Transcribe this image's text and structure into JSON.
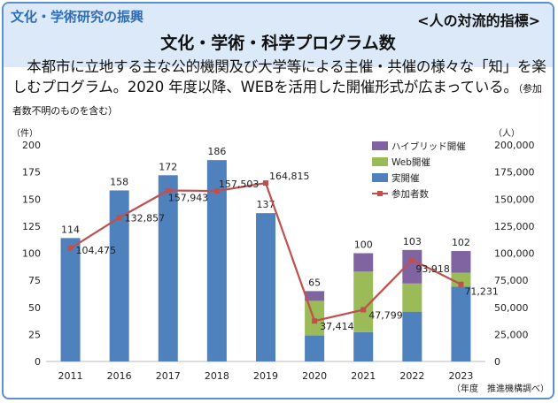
{
  "header": {
    "category": "文化・学術研究の振興",
    "indicator": "<人の対流的指標>",
    "title": "文化・学術・科学プログラム数"
  },
  "description": {
    "text": "　本都市に立地する主な公的機関及び大学等による主催・共催の様々な「知」を楽しむプログラム。2020 年度以降、WEBを活用した開催形式が広まっている。",
    "note": "（参加者数不明のものを含む）"
  },
  "colors": {
    "real": "#4f81bd",
    "web": "#9bbb59",
    "hybrid": "#8064a2",
    "line": "#c0504d",
    "frame": "#5a8fd0",
    "category": "#2f6db5"
  },
  "chart_data": {
    "type": "bar",
    "stacked": true,
    "categories": [
      "2011",
      "2016",
      "2017",
      "2018",
      "2019",
      "2020",
      "2021",
      "2022",
      "2023"
    ],
    "series": [
      {
        "name": "実開催",
        "values": [
          114,
          158,
          172,
          186,
          137,
          24,
          27,
          46,
          69
        ]
      },
      {
        "name": "Web開催",
        "values": [
          0,
          0,
          0,
          0,
          0,
          32,
          56,
          26,
          13
        ]
      },
      {
        "name": "ハイブリッド開催",
        "values": [
          0,
          0,
          0,
          0,
          0,
          9,
          17,
          31,
          20
        ]
      }
    ],
    "bar_totals": [
      "114",
      "158",
      "172",
      "186",
      "137",
      "65",
      "100",
      "103",
      "102"
    ],
    "line": {
      "name": "参加者数",
      "values": [
        104475,
        132857,
        157943,
        157503,
        164815,
        37414,
        47799,
        93918,
        71231
      ],
      "labels": [
        "104,475",
        "132,857",
        "157,943",
        "157,503",
        "164,815",
        "37,414",
        "47,799",
        "93,918",
        "71,231"
      ]
    },
    "ylim_left": [
      0,
      200
    ],
    "ylim_right": [
      0,
      200000
    ],
    "left_ticks": [
      "0",
      "25",
      "50",
      "75",
      "100",
      "125",
      "150",
      "175",
      "200"
    ],
    "right_ticks": [
      "0",
      "25,000",
      "50,000",
      "75,000",
      "100,000",
      "125,000",
      "150,000",
      "175,000",
      "200,000"
    ],
    "ylabel_left": "（件）",
    "ylabel_right": "（人）",
    "legend": [
      "ハイブリッド開催",
      "Web開催",
      "実開催",
      "参加者数"
    ],
    "legend_position": "top-right",
    "source_note": "（年度　推進機構調べ）"
  }
}
